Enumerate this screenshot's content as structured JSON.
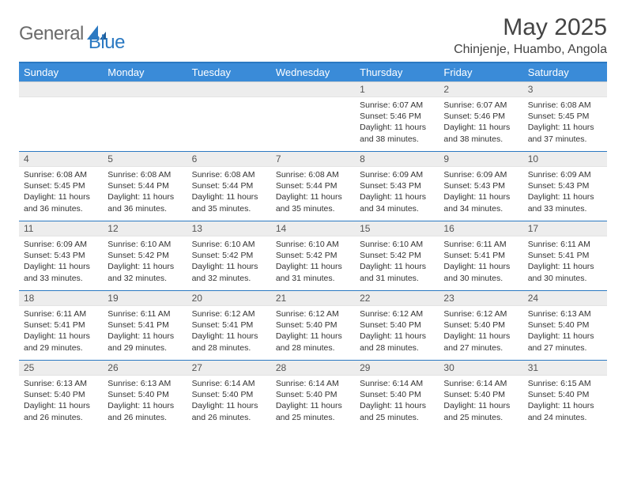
{
  "brand": {
    "name1": "General",
    "name2": "Blue"
  },
  "title": "May 2025",
  "location": "Chinjenje, Huambo, Angola",
  "colors": {
    "header_bg": "#3a8bd8",
    "header_text": "#ffffff",
    "rule": "#2b79c2",
    "daynum_bg": "#ededed",
    "text": "#333333",
    "logo_gray": "#6b6b6b"
  },
  "weekdays": [
    "Sunday",
    "Monday",
    "Tuesday",
    "Wednesday",
    "Thursday",
    "Friday",
    "Saturday"
  ],
  "weeks": [
    [
      null,
      null,
      null,
      null,
      {
        "n": "1",
        "sr": "6:07 AM",
        "ss": "5:46 PM",
        "dl": "11 hours and 38 minutes."
      },
      {
        "n": "2",
        "sr": "6:07 AM",
        "ss": "5:46 PM",
        "dl": "11 hours and 38 minutes."
      },
      {
        "n": "3",
        "sr": "6:08 AM",
        "ss": "5:45 PM",
        "dl": "11 hours and 37 minutes."
      }
    ],
    [
      {
        "n": "4",
        "sr": "6:08 AM",
        "ss": "5:45 PM",
        "dl": "11 hours and 36 minutes."
      },
      {
        "n": "5",
        "sr": "6:08 AM",
        "ss": "5:44 PM",
        "dl": "11 hours and 36 minutes."
      },
      {
        "n": "6",
        "sr": "6:08 AM",
        "ss": "5:44 PM",
        "dl": "11 hours and 35 minutes."
      },
      {
        "n": "7",
        "sr": "6:08 AM",
        "ss": "5:44 PM",
        "dl": "11 hours and 35 minutes."
      },
      {
        "n": "8",
        "sr": "6:09 AM",
        "ss": "5:43 PM",
        "dl": "11 hours and 34 minutes."
      },
      {
        "n": "9",
        "sr": "6:09 AM",
        "ss": "5:43 PM",
        "dl": "11 hours and 34 minutes."
      },
      {
        "n": "10",
        "sr": "6:09 AM",
        "ss": "5:43 PM",
        "dl": "11 hours and 33 minutes."
      }
    ],
    [
      {
        "n": "11",
        "sr": "6:09 AM",
        "ss": "5:43 PM",
        "dl": "11 hours and 33 minutes."
      },
      {
        "n": "12",
        "sr": "6:10 AM",
        "ss": "5:42 PM",
        "dl": "11 hours and 32 minutes."
      },
      {
        "n": "13",
        "sr": "6:10 AM",
        "ss": "5:42 PM",
        "dl": "11 hours and 32 minutes."
      },
      {
        "n": "14",
        "sr": "6:10 AM",
        "ss": "5:42 PM",
        "dl": "11 hours and 31 minutes."
      },
      {
        "n": "15",
        "sr": "6:10 AM",
        "ss": "5:42 PM",
        "dl": "11 hours and 31 minutes."
      },
      {
        "n": "16",
        "sr": "6:11 AM",
        "ss": "5:41 PM",
        "dl": "11 hours and 30 minutes."
      },
      {
        "n": "17",
        "sr": "6:11 AM",
        "ss": "5:41 PM",
        "dl": "11 hours and 30 minutes."
      }
    ],
    [
      {
        "n": "18",
        "sr": "6:11 AM",
        "ss": "5:41 PM",
        "dl": "11 hours and 29 minutes."
      },
      {
        "n": "19",
        "sr": "6:11 AM",
        "ss": "5:41 PM",
        "dl": "11 hours and 29 minutes."
      },
      {
        "n": "20",
        "sr": "6:12 AM",
        "ss": "5:41 PM",
        "dl": "11 hours and 28 minutes."
      },
      {
        "n": "21",
        "sr": "6:12 AM",
        "ss": "5:40 PM",
        "dl": "11 hours and 28 minutes."
      },
      {
        "n": "22",
        "sr": "6:12 AM",
        "ss": "5:40 PM",
        "dl": "11 hours and 28 minutes."
      },
      {
        "n": "23",
        "sr": "6:12 AM",
        "ss": "5:40 PM",
        "dl": "11 hours and 27 minutes."
      },
      {
        "n": "24",
        "sr": "6:13 AM",
        "ss": "5:40 PM",
        "dl": "11 hours and 27 minutes."
      }
    ],
    [
      {
        "n": "25",
        "sr": "6:13 AM",
        "ss": "5:40 PM",
        "dl": "11 hours and 26 minutes."
      },
      {
        "n": "26",
        "sr": "6:13 AM",
        "ss": "5:40 PM",
        "dl": "11 hours and 26 minutes."
      },
      {
        "n": "27",
        "sr": "6:14 AM",
        "ss": "5:40 PM",
        "dl": "11 hours and 26 minutes."
      },
      {
        "n": "28",
        "sr": "6:14 AM",
        "ss": "5:40 PM",
        "dl": "11 hours and 25 minutes."
      },
      {
        "n": "29",
        "sr": "6:14 AM",
        "ss": "5:40 PM",
        "dl": "11 hours and 25 minutes."
      },
      {
        "n": "30",
        "sr": "6:14 AM",
        "ss": "5:40 PM",
        "dl": "11 hours and 25 minutes."
      },
      {
        "n": "31",
        "sr": "6:15 AM",
        "ss": "5:40 PM",
        "dl": "11 hours and 24 minutes."
      }
    ]
  ],
  "labels": {
    "sunrise": "Sunrise:",
    "sunset": "Sunset:",
    "daylight": "Daylight:"
  }
}
